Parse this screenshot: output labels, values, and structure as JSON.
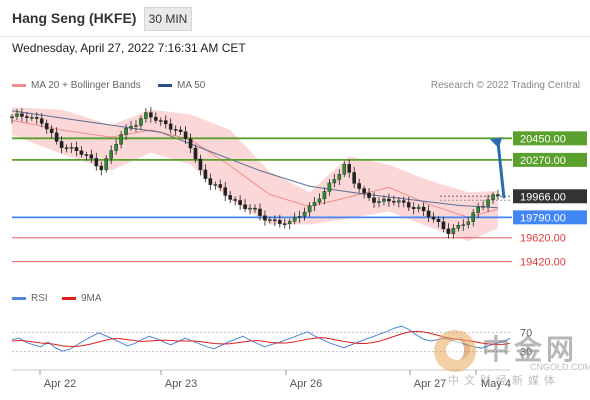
{
  "header": {
    "title": "Hang Seng (HKFE)",
    "interval": "30 MIN",
    "datetime": "Wednesday, April 27, 2022 7:16:31 AM CET"
  },
  "legend": {
    "ma20": "MA 20 + Bollinger Bands",
    "ma50": "MA 50",
    "rsi": "RSI",
    "ma9": "9MA",
    "credit": "Research © 2022 Trading Central"
  },
  "colors": {
    "resistance": "#5aa02c",
    "pivot": "#4285f4",
    "support": "#e23a3a",
    "current": "#333333",
    "bands": "#f9c9c9",
    "ma20": "#f08d8d",
    "ma50": "#5b6f95",
    "rsi": "#4f86d8",
    "ma9": "#e02020",
    "arrow": "#2b6cb0"
  },
  "chart_data": [
    {
      "type": "candlestick",
      "title": "Hang Seng (HKFE)",
      "ylim": [
        19250,
        20720
      ],
      "x_ticks": [
        "Apr 22",
        "Apr 23",
        "Apr 26",
        "Apr 27",
        "May 4"
      ],
      "levels": [
        {
          "label": "20450.00",
          "value": 20450,
          "kind": "resistance"
        },
        {
          "label": "20270.00",
          "value": 20270,
          "kind": "resistance"
        },
        {
          "label": "19966.00",
          "value": 19966,
          "kind": "current"
        },
        {
          "label": "19790.00",
          "value": 19790,
          "kind": "pivot"
        },
        {
          "label": "19620.00",
          "value": 19620,
          "kind": "support"
        },
        {
          "label": "19420.00",
          "value": 19420,
          "kind": "support"
        }
      ],
      "close_path": [
        [
          0,
          20620
        ],
        [
          3,
          20650
        ],
        [
          6,
          20580
        ],
        [
          9,
          20420
        ],
        [
          12,
          20360
        ],
        [
          15,
          20300
        ],
        [
          18,
          20210
        ],
        [
          20,
          20330
        ],
        [
          22,
          20480
        ],
        [
          24,
          20560
        ],
        [
          27,
          20640
        ],
        [
          30,
          20590
        ],
        [
          33,
          20530
        ],
        [
          36,
          20380
        ],
        [
          38,
          20180
        ],
        [
          40,
          20080
        ],
        [
          43,
          19980
        ],
        [
          46,
          19900
        ],
        [
          48,
          19860
        ],
        [
          50,
          19800
        ],
        [
          53,
          19760
        ],
        [
          56,
          19730
        ],
        [
          58,
          19820
        ],
        [
          60,
          19880
        ],
        [
          63,
          19990
        ],
        [
          65,
          20120
        ],
        [
          67,
          20230
        ],
        [
          69,
          20080
        ],
        [
          71,
          19970
        ],
        [
          74,
          19930
        ],
        [
          77,
          19920
        ],
        [
          80,
          19900
        ],
        [
          82,
          19860
        ],
        [
          84,
          19800
        ],
        [
          86,
          19740
        ],
        [
          88,
          19680
        ],
        [
          90,
          19700
        ],
        [
          92,
          19760
        ],
        [
          94,
          19880
        ],
        [
          96,
          19940
        ],
        [
          98,
          19966
        ]
      ],
      "ma20_path": [
        [
          0,
          20600
        ],
        [
          10,
          20520
        ],
        [
          20,
          20460
        ],
        [
          28,
          20520
        ],
        [
          36,
          20440
        ],
        [
          44,
          20220
        ],
        [
          52,
          19980
        ],
        [
          60,
          19880
        ],
        [
          68,
          19960
        ],
        [
          76,
          20040
        ],
        [
          84,
          19900
        ],
        [
          92,
          19790
        ],
        [
          98,
          19860
        ]
      ],
      "band_upper_path": [
        [
          0,
          20710
        ],
        [
          10,
          20690
        ],
        [
          20,
          20560
        ],
        [
          28,
          20690
        ],
        [
          36,
          20650
        ],
        [
          44,
          20520
        ],
        [
          52,
          20170
        ],
        [
          60,
          20000
        ],
        [
          68,
          20300
        ],
        [
          76,
          20230
        ],
        [
          84,
          20100
        ],
        [
          92,
          20000
        ],
        [
          98,
          20010
        ]
      ],
      "band_lower_path": [
        [
          0,
          20480
        ],
        [
          10,
          20320
        ],
        [
          20,
          20180
        ],
        [
          28,
          20330
        ],
        [
          36,
          20230
        ],
        [
          44,
          19940
        ],
        [
          52,
          19730
        ],
        [
          60,
          19730
        ],
        [
          68,
          19780
        ],
        [
          76,
          19840
        ],
        [
          84,
          19710
        ],
        [
          92,
          19590
        ],
        [
          98,
          19700
        ]
      ],
      "ma50_path": [
        [
          0,
          20680
        ],
        [
          10,
          20620
        ],
        [
          20,
          20560
        ],
        [
          30,
          20500
        ],
        [
          40,
          20340
        ],
        [
          50,
          20180
        ],
        [
          60,
          20050
        ],
        [
          70,
          19990
        ],
        [
          80,
          19940
        ],
        [
          90,
          19890
        ],
        [
          98,
          19870
        ]
      ],
      "forecast": [
        [
          98,
          19966
        ],
        [
          112,
          20450
        ]
      ]
    },
    {
      "type": "line",
      "ylim": [
        0,
        100
      ],
      "y_ticks": [
        "70",
        "30"
      ],
      "series": [
        {
          "name": "RSI",
          "values": [
            55,
            58,
            49,
            44,
            40,
            50,
            38,
            31,
            35,
            44,
            53,
            61,
            69,
            63,
            56,
            49,
            42,
            47,
            55,
            62,
            57,
            50,
            44,
            51,
            58,
            52,
            46,
            40,
            36,
            43,
            50,
            56,
            62,
            54,
            47,
            40,
            45,
            49,
            55,
            60,
            66,
            71,
            62,
            55,
            48,
            43,
            38,
            44,
            50,
            56,
            61,
            67,
            72,
            79,
            83,
            76,
            65,
            56,
            52,
            55,
            58,
            53,
            49,
            44,
            40,
            37,
            42,
            47,
            51,
            58
          ]
        },
        {
          "name": "9MA",
          "values": [
            52,
            53,
            52,
            50,
            48,
            47,
            45,
            42,
            41,
            41,
            43,
            46,
            50,
            54,
            57,
            57,
            55,
            53,
            51,
            52,
            53,
            54,
            53,
            52,
            52,
            52,
            51,
            49,
            47,
            46,
            46,
            48,
            50,
            52,
            53,
            51,
            49,
            48,
            48,
            50,
            53,
            56,
            58,
            59,
            57,
            54,
            51,
            49,
            47,
            47,
            49,
            52,
            57,
            62,
            67,
            71,
            72,
            71,
            68,
            64,
            60,
            57,
            55,
            53,
            51,
            48,
            46,
            45,
            45,
            47
          ]
        }
      ]
    }
  ]
}
